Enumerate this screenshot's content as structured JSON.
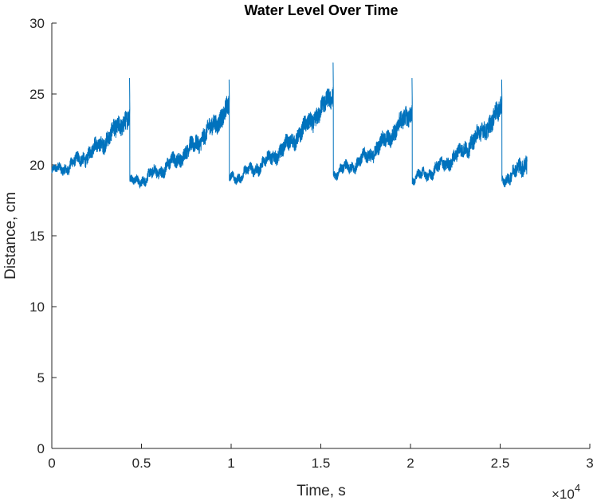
{
  "chart_data": {
    "type": "line",
    "title": "Water Level Over Time",
    "xlabel": "Time, s",
    "ylabel": "Distance, cm",
    "x_exponent_label": "×10",
    "x_exponent_power": "4",
    "xlim": [
      0,
      30000
    ],
    "ylim": [
      0,
      30
    ],
    "x_ticks": [
      0,
      5000,
      10000,
      15000,
      20000,
      25000,
      30000
    ],
    "x_tick_labels": [
      "0",
      "0.5",
      "1",
      "1.5",
      "2",
      "2.5",
      "3"
    ],
    "y_ticks": [
      0,
      5,
      10,
      15,
      20,
      25,
      30
    ],
    "y_tick_labels": [
      "0",
      "5",
      "10",
      "15",
      "20",
      "25",
      "30"
    ],
    "grid": false,
    "line_color": "#0072BD",
    "axis_color": "#262626",
    "series": [
      {
        "cycles": [
          {
            "x_start": 0,
            "x_end": 4350,
            "y_start": 19.5,
            "y_end": 23.6,
            "peak": 26.1
          },
          {
            "x_start": 4350,
            "x_end": 9900,
            "y_start": 18.7,
            "y_end": 24.1,
            "peak": 26.0
          },
          {
            "x_start": 9900,
            "x_end": 15700,
            "y_start": 19.0,
            "y_end": 25.0,
            "peak": 27.2
          },
          {
            "x_start": 15700,
            "x_end": 20100,
            "y_start": 19.4,
            "y_end": 23.9,
            "peak": 26.1
          },
          {
            "x_start": 20100,
            "x_end": 25100,
            "y_start": 19.0,
            "y_end": 24.0,
            "peak": 26.0
          },
          {
            "x_start": 25100,
            "x_end": 26500,
            "y_start": 19.0,
            "y_end": 20.3,
            "peak": null
          }
        ]
      }
    ]
  }
}
